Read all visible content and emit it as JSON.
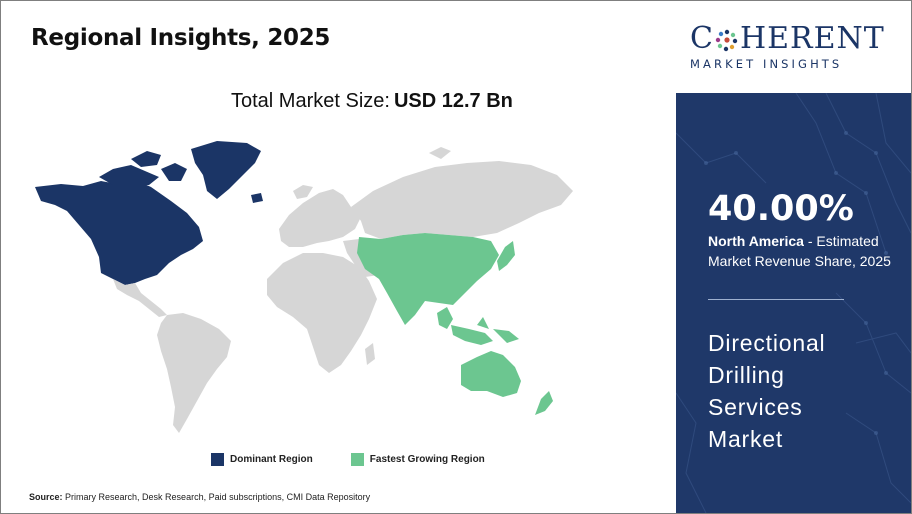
{
  "title": "Regional Insights, 2025",
  "market_size": {
    "label": "Total Market Size:",
    "value": "USD 12.7 Bn"
  },
  "legend": [
    {
      "label": "Dominant Region",
      "color": "#1b3566"
    },
    {
      "label": "Fastest Growing Region",
      "color": "#6cc690"
    }
  ],
  "source": {
    "label": "Source:",
    "text": "Primary Research, Desk Research, Paid subscriptions, CMI Data Repository"
  },
  "logo": {
    "name_prefix": "C",
    "name_suffix": "HERENT",
    "tagline": "MARKET INSIGHTS"
  },
  "highlight": {
    "share": "40.00%",
    "region": "North America",
    "description": " - Estimated Market Revenue Share, 2025"
  },
  "market_name": [
    "Directional",
    "Drilling",
    "Services",
    "Market"
  ],
  "colors": {
    "dominant": "#1b3566",
    "fastest": "#6cc690",
    "other": "#d6d6d6",
    "panel": "#1f3869"
  },
  "map": {
    "dominant_region": "North America",
    "fastest_growing_region": "Asia Pacific"
  }
}
